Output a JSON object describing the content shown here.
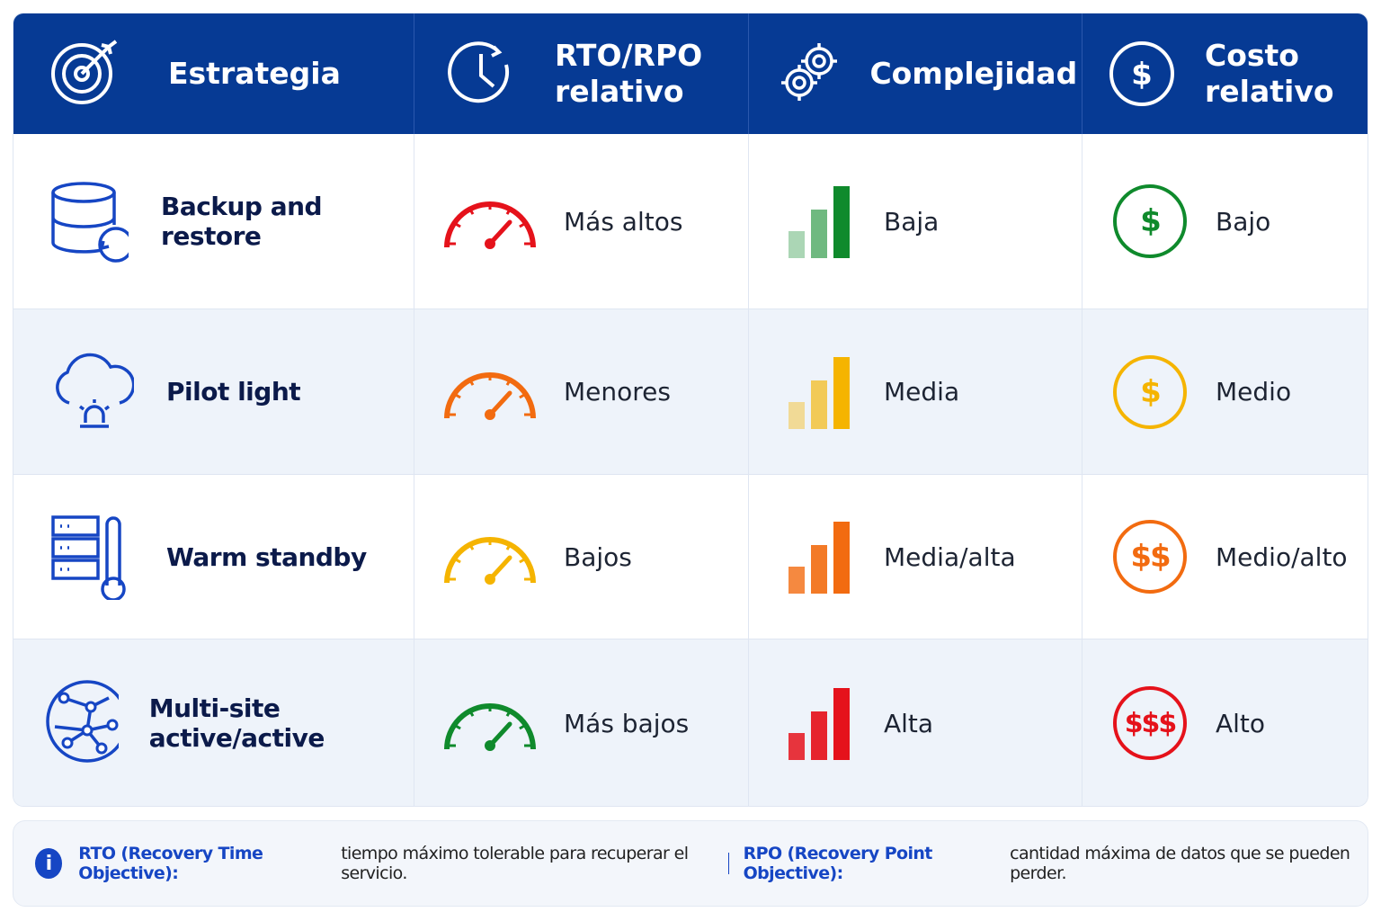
{
  "header": {
    "columns": [
      {
        "label": "Estrategia"
      },
      {
        "label": "RTO/RPO relativo"
      },
      {
        "label": "Complejidad"
      },
      {
        "label": "Costo relativo",
        "icon_text": "$"
      }
    ]
  },
  "rows": [
    {
      "strategy": "Backup and restore",
      "rto_rpo": "Más altos",
      "complexity": "Baja",
      "cost_symbol": "$",
      "cost": "Bajo"
    },
    {
      "strategy": "Pilot light",
      "rto_rpo": "Menores",
      "complexity": "Media",
      "cost_symbol": "$",
      "cost": "Medio"
    },
    {
      "strategy": "Warm standby",
      "rto_rpo": "Bajos",
      "complexity": "Media/alta",
      "cost_symbol": "$$",
      "cost": "Medio/alto"
    },
    {
      "strategy": "Multi-site active/active",
      "rto_rpo": "Más bajos",
      "complexity": "Alta",
      "cost_symbol": "$$$",
      "cost": "Alto"
    }
  ],
  "footer": {
    "info_icon": "i",
    "notes": [
      {
        "term": "RTO (Recovery Time Objective):",
        "text": "tiempo máximo tolerable para recuperar el servicio."
      },
      {
        "term": "RPO (Recovery Point Objective):",
        "text": "cantidad máxima de datos que se pueden perder."
      }
    ]
  }
}
